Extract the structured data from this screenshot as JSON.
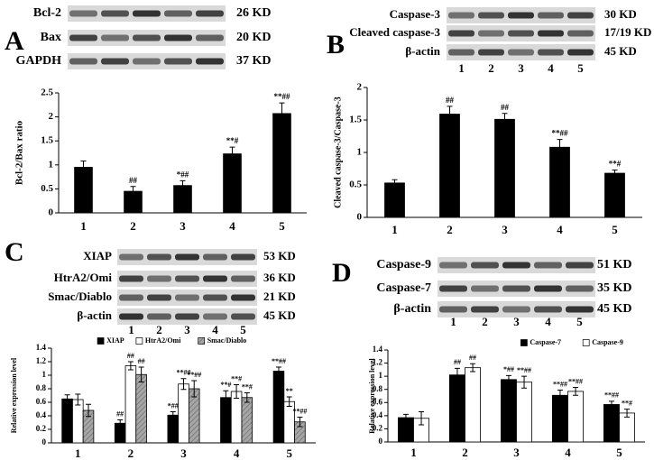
{
  "chart_data": [
    {
      "type": "bar",
      "panel": "A",
      "blot": {
        "rows": [
          {
            "label": "Bcl-2",
            "size": "26 KD"
          },
          {
            "label": "Bax",
            "size": "20 KD"
          },
          {
            "label": "GAPDH",
            "size": "37 KD"
          }
        ]
      },
      "y_label": "Bcl-2/Bax ratio",
      "categories": [
        "1",
        "2",
        "3",
        "4",
        "5"
      ],
      "values": [
        0.95,
        0.45,
        0.57,
        1.23,
        2.07
      ],
      "errors": [
        0.13,
        0.1,
        0.1,
        0.14,
        0.22
      ],
      "annotations": [
        null,
        "##",
        "*##",
        "**#",
        "**##"
      ],
      "color": "#000000",
      "ylim": [
        0,
        2.5
      ],
      "yticks": [
        0,
        0.5,
        1,
        1.5,
        2,
        2.5
      ]
    },
    {
      "type": "bar",
      "panel": "B",
      "blot": {
        "rows": [
          {
            "label": "Caspase-3",
            "size": "30 KD"
          },
          {
            "label": "Cleaved caspase-3",
            "size": "17/19 KD"
          },
          {
            "label": "β-actin",
            "size": "45 KD"
          }
        ],
        "lanes": [
          "1",
          "2",
          "3",
          "4",
          "5"
        ]
      },
      "y_label": "Cleaved caspase-3/Caspase-3",
      "categories": [
        "1",
        "2",
        "3",
        "4",
        "5"
      ],
      "values": [
        0.53,
        1.59,
        1.51,
        1.08,
        0.68
      ],
      "errors": [
        0.05,
        0.12,
        0.09,
        0.12,
        0.05
      ],
      "annotations": [
        null,
        "##",
        "##",
        "**##",
        "**#"
      ],
      "color": "#000000",
      "ylim": [
        0,
        2
      ],
      "yticks": [
        0,
        0.5,
        1,
        1.5,
        2
      ]
    },
    {
      "type": "bar",
      "panel": "C",
      "blot": {
        "rows": [
          {
            "label": "XIAP",
            "size": "53 KD"
          },
          {
            "label": "HtrA2/Omi",
            "size": "36 KD"
          },
          {
            "label": "Smac/Diablo",
            "size": "21 KD"
          },
          {
            "label": "β-actin",
            "size": "45 KD"
          }
        ],
        "lanes": [
          "1",
          "2",
          "3",
          "4",
          "5"
        ]
      },
      "y_label": "Relative expression level",
      "categories": [
        "1",
        "2",
        "3",
        "4",
        "5"
      ],
      "series": [
        {
          "name": "XIAP",
          "color": "#000000",
          "values": [
            0.65,
            0.29,
            0.41,
            0.67,
            1.06
          ],
          "errors": [
            0.06,
            0.05,
            0.05,
            0.1,
            0.06
          ],
          "annotations": [
            null,
            "##",
            "*##",
            "**#",
            "**##"
          ]
        },
        {
          "name": "HtrA2/Omi",
          "color": "#ffffff",
          "values": [
            0.64,
            1.14,
            0.87,
            0.76,
            0.61
          ],
          "errors": [
            0.08,
            0.06,
            0.08,
            0.1,
            0.07
          ],
          "annotations": [
            null,
            "##",
            "**##",
            "**#",
            "**"
          ]
        },
        {
          "name": "Smac/Diablo",
          "color": "#a6a6a6",
          "hatch": true,
          "values": [
            0.48,
            1.01,
            0.8,
            0.67,
            0.31
          ],
          "errors": [
            0.09,
            0.11,
            0.12,
            0.07,
            0.07
          ],
          "annotations": [
            null,
            "##",
            "**##",
            "**#",
            "**##"
          ]
        }
      ],
      "legend": "top",
      "ylim": [
        0,
        1.4
      ],
      "yticks": [
        0,
        0.2,
        0.4,
        0.6,
        0.8,
        1,
        1.2,
        1.4
      ]
    },
    {
      "type": "bar",
      "panel": "D",
      "blot": {
        "rows": [
          {
            "label": "Caspase-9",
            "size": "51 KD"
          },
          {
            "label": "Caspase-7",
            "size": "35 KD"
          },
          {
            "label": "β-actin",
            "size": "45 KD"
          }
        ],
        "lanes": [
          "1",
          "2",
          "3",
          "4",
          "5"
        ]
      },
      "y_label": "Relative expression level",
      "categories": [
        "1",
        "2",
        "3",
        "4",
        "5"
      ],
      "series": [
        {
          "name": "Caspase-7",
          "color": "#000000",
          "values": [
            0.37,
            1.02,
            0.95,
            0.71,
            0.57
          ],
          "errors": [
            0.05,
            0.1,
            0.06,
            0.08,
            0.05
          ],
          "annotations": [
            null,
            "##",
            "*##",
            "**##",
            "**##"
          ]
        },
        {
          "name": "Caspase-9",
          "color": "#ffffff",
          "values": [
            0.36,
            1.13,
            0.91,
            0.77,
            0.44
          ],
          "errors": [
            0.1,
            0.06,
            0.09,
            0.06,
            0.06
          ],
          "annotations": [
            null,
            "##",
            "**##",
            "**##",
            "**#"
          ]
        }
      ],
      "legend": "top-right",
      "ylim": [
        0,
        1.4
      ],
      "yticks": [
        0,
        0.2,
        0.4,
        0.6,
        0.8,
        1,
        1.2,
        1.4
      ]
    }
  ]
}
